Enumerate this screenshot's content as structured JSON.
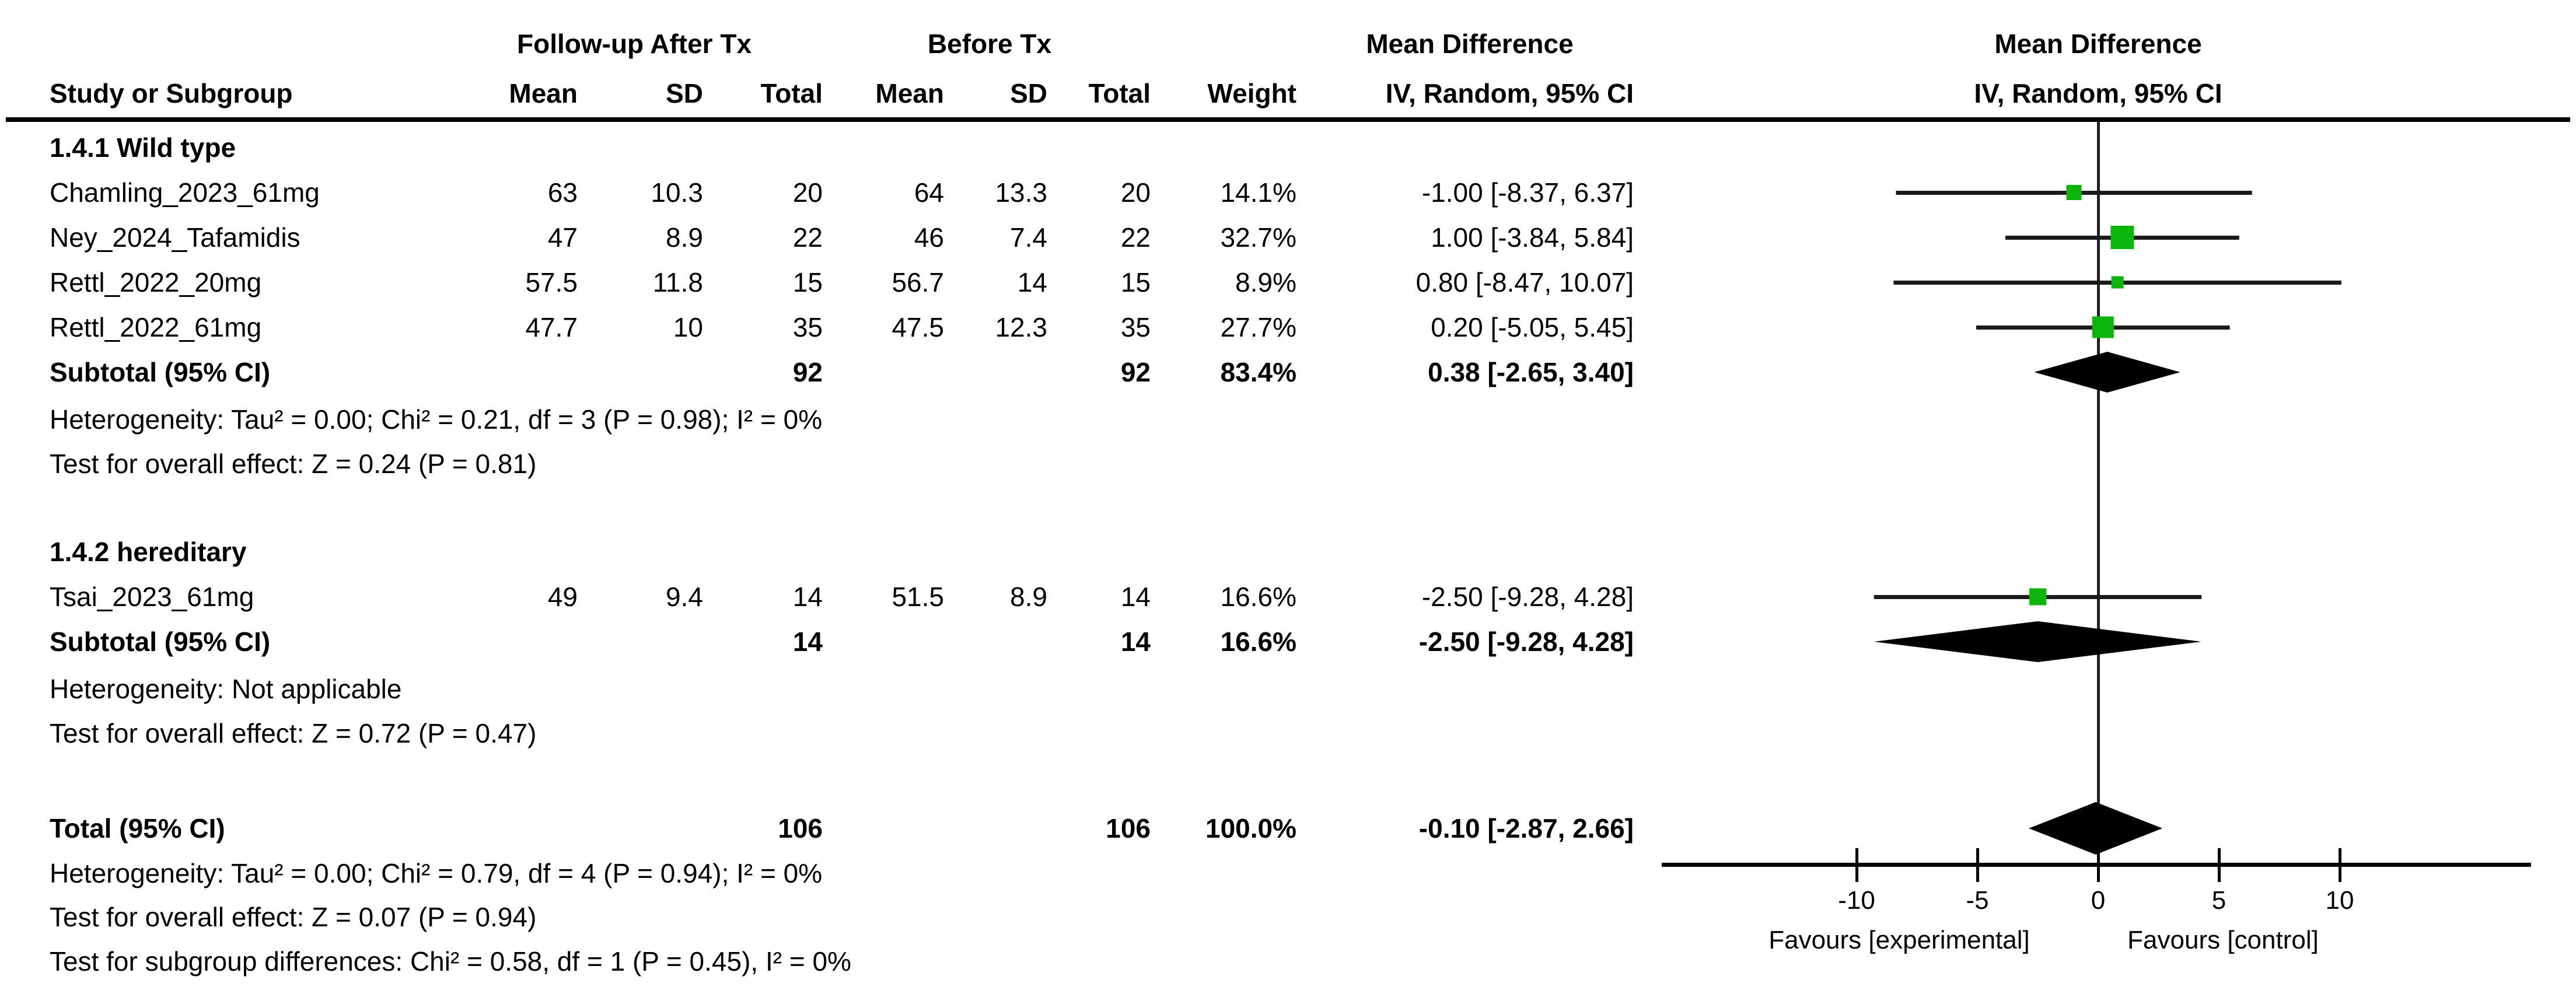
{
  "header": {
    "group_cols": [
      "Follow-up After Tx",
      "Before Tx",
      "Mean Difference",
      "Mean Difference"
    ],
    "study_col": "Study or Subgroup",
    "sub_cols": [
      "Mean",
      "SD",
      "Total",
      "Mean",
      "SD",
      "Total",
      "Weight"
    ],
    "ci_col_text": "IV, Random, 95% CI",
    "ci_col_plot": "IV, Random, 95% CI"
  },
  "sections": [
    {
      "label": "1.4.1 Wild type",
      "studies": [
        {
          "name": "Chamling_2023_61mg",
          "mean1": "63",
          "sd1": "10.3",
          "total1": "20",
          "mean2": "64",
          "sd2": "13.3",
          "total2": "20",
          "weight": "14.1%",
          "ci_text": "-1.00 [-8.37, 6.37]",
          "md": -1.0,
          "lo": -8.37,
          "hi": 6.37,
          "weight_value": 14.1
        },
        {
          "name": "Ney_2024_Tafamidis",
          "mean1": "47",
          "sd1": "8.9",
          "total1": "22",
          "mean2": "46",
          "sd2": "7.4",
          "total2": "22",
          "weight": "32.7%",
          "ci_text": "1.00 [-3.84, 5.84]",
          "md": 1.0,
          "lo": -3.84,
          "hi": 5.84,
          "weight_value": 32.7
        },
        {
          "name": "Rettl_2022_20mg",
          "mean1": "57.5",
          "sd1": "11.8",
          "total1": "15",
          "mean2": "56.7",
          "sd2": "14",
          "total2": "15",
          "weight": "8.9%",
          "ci_text": "0.80 [-8.47, 10.07]",
          "md": 0.8,
          "lo": -8.47,
          "hi": 10.07,
          "weight_value": 8.9
        },
        {
          "name": "Rettl_2022_61mg",
          "mean1": "47.7",
          "sd1": "10",
          "total1": "35",
          "mean2": "47.5",
          "sd2": "12.3",
          "total2": "35",
          "weight": "27.7%",
          "ci_text": "0.20 [-5.05, 5.45]",
          "md": 0.2,
          "lo": -5.05,
          "hi": 5.45,
          "weight_value": 27.7
        }
      ],
      "subtotal": {
        "label": "Subtotal (95% CI)",
        "total1": "92",
        "total2": "92",
        "weight": "83.4%",
        "ci_text": "0.38 [-2.65, 3.40]",
        "md": 0.38,
        "lo": -2.65,
        "hi": 3.4
      },
      "heterogeneity": "Heterogeneity: Tau² = 0.00; Chi² = 0.21, df = 3 (P = 0.98); I² = 0%",
      "overall_effect": "Test for overall effect: Z = 0.24 (P = 0.81)"
    },
    {
      "label": "1.4.2 hereditary",
      "studies": [
        {
          "name": "Tsai_2023_61mg",
          "mean1": "49",
          "sd1": "9.4",
          "total1": "14",
          "mean2": "51.5",
          "sd2": "8.9",
          "total2": "14",
          "weight": "16.6%",
          "ci_text": "-2.50 [-9.28, 4.28]",
          "md": -2.5,
          "lo": -9.28,
          "hi": 4.28,
          "weight_value": 16.6
        }
      ],
      "subtotal": {
        "label": "Subtotal (95% CI)",
        "total1": "14",
        "total2": "14",
        "weight": "16.6%",
        "ci_text": "-2.50 [-9.28, 4.28]",
        "md": -2.5,
        "lo": -9.28,
        "hi": 4.28
      },
      "heterogeneity": "Heterogeneity: Not applicable",
      "overall_effect": "Test for overall effect: Z = 0.72 (P = 0.47)"
    }
  ],
  "total": {
    "label": "Total (95% CI)",
    "total1": "106",
    "total2": "106",
    "weight": "100.0%",
    "ci_text": "-0.10 [-2.87, 2.66]",
    "md": -0.1,
    "lo": -2.87,
    "hi": 2.66
  },
  "footer": {
    "heterogeneity": "Heterogeneity: Tau² = 0.00; Chi² = 0.79, df = 4 (P = 0.94); I² = 0%",
    "overall_effect": "Test for overall effect: Z = 0.07 (P = 0.94)",
    "subgroup_diff": "Test for subgroup differences: Chi² = 0.58, df = 1 (P = 0.45), I² = 0%"
  },
  "axis": {
    "ticks": [
      "-10",
      "-5",
      "0",
      "5",
      "10"
    ],
    "tick_values": [
      -10,
      -5,
      0,
      5,
      10
    ],
    "favours_left": "Favours [experimental]",
    "favours_right": "Favours [control]"
  },
  "colors": {
    "marker_green": "#0cb40c",
    "line_black": "#1a1a1a",
    "diamond_black": "#000000"
  },
  "chart_data": {
    "type": "scatter",
    "subtype": "forest-plot",
    "title": "Mean Difference — IV, Random, 95% CI",
    "xlabel_left": "Favours [experimental]",
    "xlabel_right": "Favours [control]",
    "xlim": [
      -18,
      18
    ],
    "x_ticks": [
      -10,
      -5,
      0,
      5,
      10
    ],
    "grid": false,
    "series": [
      {
        "group": "1.4.1 Wild type",
        "studies": [
          {
            "name": "Chamling_2023_61mg",
            "md": -1.0,
            "ci": [
              -8.37,
              6.37
            ],
            "weight_pct": 14.1
          },
          {
            "name": "Ney_2024_Tafamidis",
            "md": 1.0,
            "ci": [
              -3.84,
              5.84
            ],
            "weight_pct": 32.7
          },
          {
            "name": "Rettl_2022_20mg",
            "md": 0.8,
            "ci": [
              -8.47,
              10.07
            ],
            "weight_pct": 8.9
          },
          {
            "name": "Rettl_2022_61mg",
            "md": 0.2,
            "ci": [
              -5.05,
              5.45
            ],
            "weight_pct": 27.7
          }
        ],
        "subtotal": {
          "md": 0.38,
          "ci": [
            -2.65,
            3.4
          ],
          "weight_pct": 83.4,
          "n": 92
        }
      },
      {
        "group": "1.4.2 hereditary",
        "studies": [
          {
            "name": "Tsai_2023_61mg",
            "md": -2.5,
            "ci": [
              -9.28,
              4.28
            ],
            "weight_pct": 16.6
          }
        ],
        "subtotal": {
          "md": -2.5,
          "ci": [
            -9.28,
            4.28
          ],
          "weight_pct": 16.6,
          "n": 14
        }
      }
    ],
    "total": {
      "md": -0.1,
      "ci": [
        -2.87,
        2.66
      ],
      "weight_pct": 100.0,
      "n": 106
    }
  }
}
